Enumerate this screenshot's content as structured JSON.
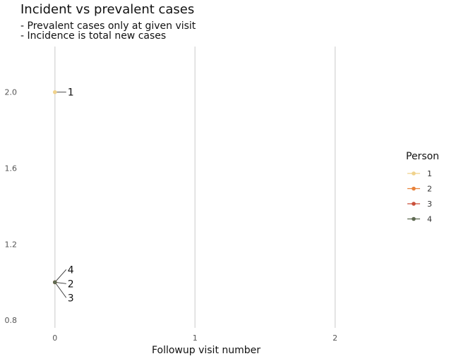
{
  "chart_data": {
    "type": "scatter",
    "title": "Incident vs prevalent cases",
    "subtitle": [
      "- Prevalent cases only at given visit",
      "- Incidence is total new cases"
    ],
    "xlabel": "Followup visit number",
    "ylabel": "",
    "x_ticks": [
      0,
      1,
      2
    ],
    "y_ticks": [
      "0.8",
      "1.2",
      "1.6",
      "2.0"
    ],
    "xlim": [
      -0.13,
      2.43
    ],
    "ylim": [
      0.76,
      2.24
    ],
    "grid": "vertical-major",
    "legend": {
      "title": "Person",
      "placement": "right",
      "entries": [
        {
          "name": "1",
          "color": "#F0D28C"
        },
        {
          "name": "2",
          "color": "#E8823A"
        },
        {
          "name": "3",
          "color": "#C9503A"
        },
        {
          "name": "4",
          "color": "#5E6A52"
        }
      ]
    },
    "series": [
      {
        "name": "1",
        "color": "#F0D28C",
        "x": [
          0
        ],
        "y": [
          2.0
        ],
        "label": "1"
      },
      {
        "name": "2",
        "color": "#E8823A",
        "x": [
          0
        ],
        "y": [
          1.0
        ],
        "label": "2"
      },
      {
        "name": "3",
        "color": "#C9503A",
        "x": [
          0
        ],
        "y": [
          1.0
        ],
        "label": "3"
      },
      {
        "name": "4",
        "color": "#5E6A52",
        "x": [
          0
        ],
        "y": [
          1.0
        ],
        "label": "4"
      }
    ]
  }
}
